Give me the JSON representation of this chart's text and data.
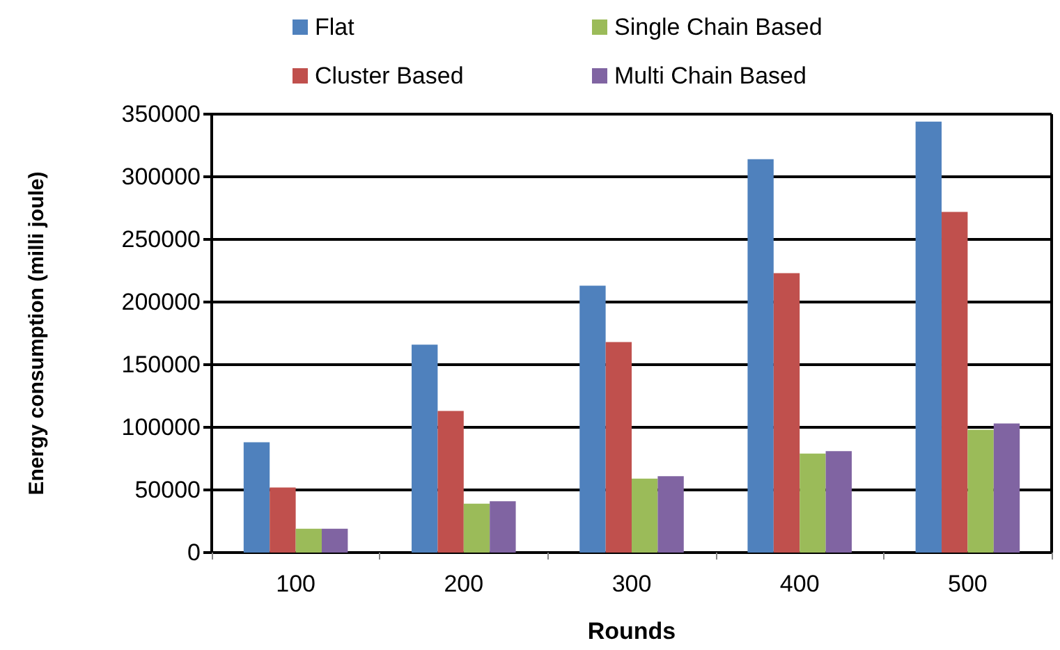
{
  "chart_data": {
    "type": "bar",
    "xlabel": "Rounds",
    "ylabel": "Energy consumption (milli joule)",
    "categories": [
      "100",
      "200",
      "300",
      "400",
      "500"
    ],
    "series": [
      {
        "name": "Flat",
        "color": "#4f81bd",
        "values": [
          88000,
          166000,
          213000,
          314000,
          344000
        ]
      },
      {
        "name": "Cluster Based",
        "color": "#c0504d",
        "values": [
          52000,
          113000,
          168000,
          223000,
          272000
        ]
      },
      {
        "name": "Single Chain Based",
        "color": "#9bbb59",
        "values": [
          19000,
          39000,
          59000,
          79000,
          98000
        ]
      },
      {
        "name": "Multi Chain Based",
        "color": "#8064a2",
        "values": [
          19000,
          41000,
          61000,
          81000,
          103000
        ]
      }
    ],
    "ylim": [
      0,
      350000
    ],
    "yticks": [
      0,
      50000,
      100000,
      150000,
      200000,
      250000,
      300000,
      350000
    ],
    "grid": "y",
    "legend": "top"
  }
}
